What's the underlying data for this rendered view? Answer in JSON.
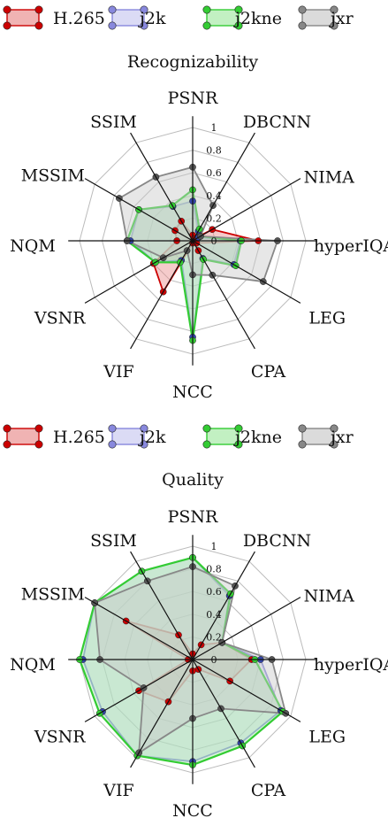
{
  "chart_data": [
    {
      "type": "radar",
      "title": "Recognizability",
      "axes": [
        "PSNR",
        "DBCNN",
        "NIMA",
        "hyperIQA",
        "LEG",
        "CPA",
        "NCC",
        "VIF",
        "VSNR",
        "NQM",
        "MSSIM",
        "SSIM"
      ],
      "ticks": [
        "0",
        "0.2",
        "0.4",
        "0.6",
        "0.8",
        "1"
      ],
      "rlim": [
        0,
        1
      ],
      "legend": "top",
      "series": [
        {
          "name": "H.265",
          "color": "#cc0000",
          "values": [
            0.05,
            0.02,
            0.2,
            0.58,
            0.04,
            0.1,
            0.02,
            0.52,
            0.4,
            0.14,
            0.18,
            0.2
          ]
        },
        {
          "name": "j2k",
          "color": "#8888dd",
          "values": [
            0.35,
            0.1,
            0.06,
            0.42,
            0.42,
            0.18,
            0.85,
            0.2,
            0.38,
            0.55,
            0.55,
            0.35
          ]
        },
        {
          "name": "j2kne",
          "color": "#33cc33",
          "values": [
            0.45,
            0.12,
            0.08,
            0.43,
            0.44,
            0.19,
            0.88,
            0.22,
            0.38,
            0.58,
            0.55,
            0.36
          ]
        },
        {
          "name": "jxr",
          "color": "#888888",
          "values": [
            0.65,
            0.36,
            0.08,
            0.75,
            0.72,
            0.35,
            0.3,
            0.1,
            0.3,
            0.58,
            0.75,
            0.65
          ]
        }
      ]
    },
    {
      "type": "radar",
      "title": "Quality",
      "axes": [
        "PSNR",
        "DBCNN",
        "NIMA",
        "hyperIQA",
        "LEG",
        "CPA",
        "NCC",
        "VIF",
        "VSNR",
        "NQM",
        "MSSIM",
        "SSIM"
      ],
      "ticks": [
        "0",
        "0.2",
        "0.4",
        "0.6",
        "0.8",
        "1"
      ],
      "rlim": [
        0,
        1
      ],
      "legend": "top",
      "series": [
        {
          "name": "H.265",
          "color": "#cc0000",
          "values": [
            0.05,
            0.15,
            0.3,
            0.52,
            0.38,
            0.1,
            0.1,
            0.43,
            0.55,
            0.04,
            0.68,
            0.25
          ]
        },
        {
          "name": "j2k",
          "color": "#8888dd",
          "values": [
            0.9,
            0.65,
            0.3,
            0.6,
            0.9,
            0.85,
            0.9,
            0.98,
            0.92,
            0.97,
            1.0,
            0.9
          ]
        },
        {
          "name": "j2kne",
          "color": "#33cc33",
          "values": [
            0.9,
            0.67,
            0.3,
            0.55,
            0.92,
            0.88,
            0.93,
            0.98,
            0.95,
            1.0,
            1.0,
            0.9
          ]
        },
        {
          "name": "jxr",
          "color": "#888888",
          "values": [
            0.82,
            0.75,
            0.3,
            0.7,
            0.95,
            0.5,
            0.52,
            0.95,
            0.5,
            0.82,
            1.0,
            0.8
          ]
        }
      ]
    }
  ]
}
